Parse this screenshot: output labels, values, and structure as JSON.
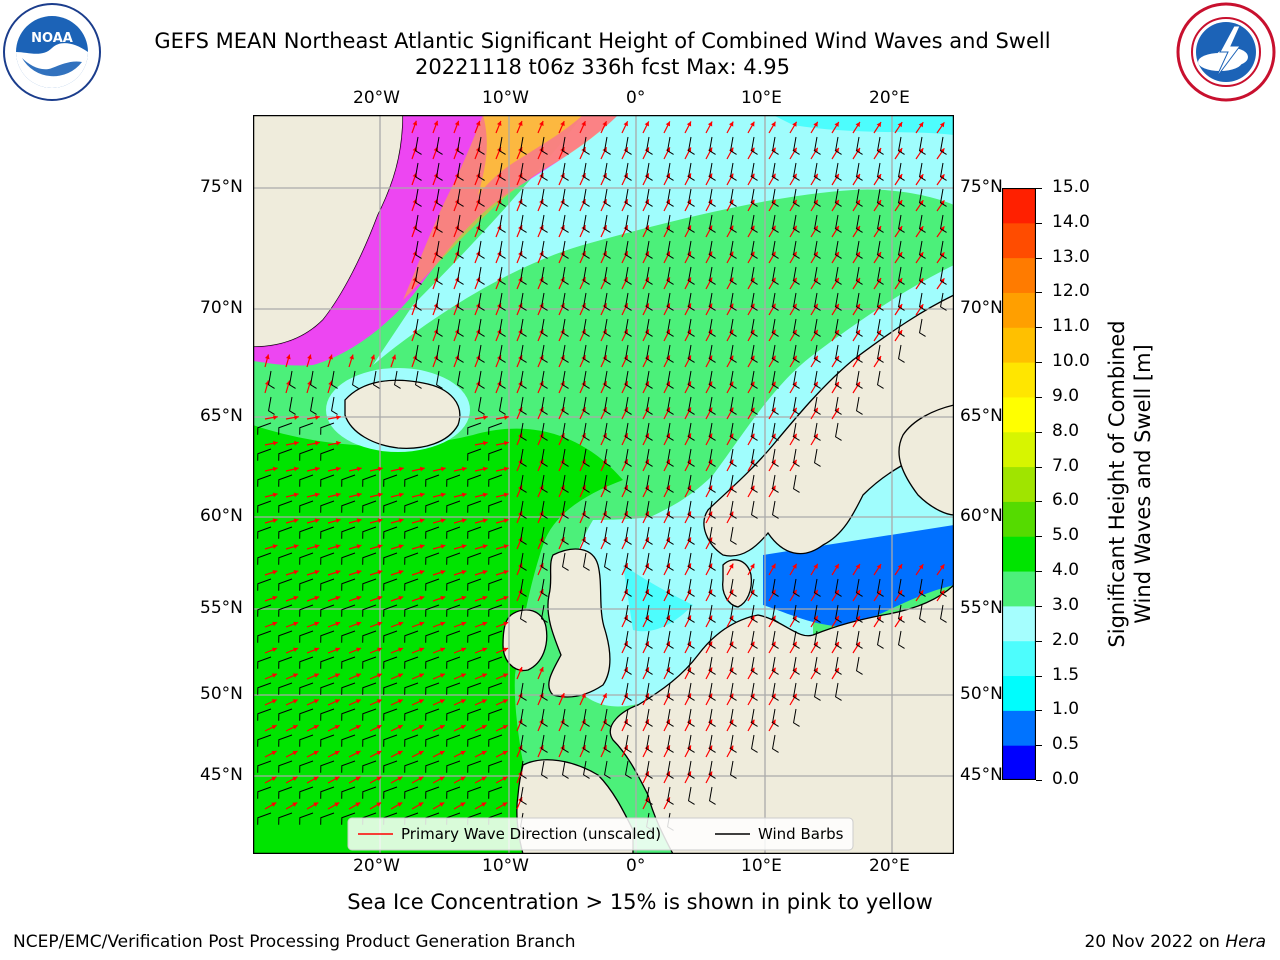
{
  "header": {
    "title_line1": "GEFS MEAN Northeast Atlantic Significant Height of Combined Wind Waves and Swell",
    "title_line2": "20221118 t06z 336h fcst   Max: 4.95",
    "left_logo_text": "NOAA",
    "left_logo_ring": "NATIONAL OCEANIC AND ATMOSPHERIC ADMINISTRATION · U.S. DEPARTMENT OF COMMERCE",
    "right_logo_ring": "NATIONAL WEATHER SERVICE"
  },
  "map": {
    "lon_ticks": [
      "20°W",
      "10°W",
      "0°",
      "10°E",
      "20°E"
    ],
    "lat_ticks": [
      "75°N",
      "70°N",
      "65°N",
      "60°N",
      "55°N",
      "50°N",
      "45°N"
    ],
    "legend": {
      "wave_label": "Primary Wave Direction (unscaled)",
      "barb_label": "Wind Barbs"
    },
    "colors": {
      "land": "#efecdc",
      "ocean_green": "#00e400",
      "ocean_light_green": "#4cf07a",
      "ocean_cyan": "#a0fdfd",
      "ocean_aqua": "#4dfdfd",
      "ocean_blue": "#0070ff",
      "ice": "#ff33ff",
      "arrow": "#ff0000"
    }
  },
  "colorbar": {
    "title_line1": "Significant Height of Combined",
    "title_line2": "Wind Waves and Swell [m]",
    "ticks": [
      "15.0",
      "14.0",
      "13.0",
      "12.0",
      "11.0",
      "10.0",
      "9.0",
      "8.0",
      "7.0",
      "6.0",
      "5.0",
      "4.0",
      "3.0",
      "2.0",
      "1.5",
      "1.0",
      "0.5",
      "0.0"
    ],
    "colors": [
      "#0000ff",
      "#0073ff",
      "#00fdfd",
      "#4dfdfd",
      "#a5fefe",
      "#4cf07a",
      "#00e400",
      "#55db00",
      "#a0e400",
      "#d7f500",
      "#ffff00",
      "#ffe600",
      "#ffc000",
      "#ff9f00",
      "#ff7b00",
      "#ff4c00",
      "#ff2000"
    ]
  },
  "caption": "Sea Ice Concentration > 15% is shown in pink to yellow",
  "footer": {
    "left": "NCEP/EMC/Verification Post Processing Product Generation Branch",
    "right_prefix": "20 Nov 2022 on ",
    "right_host": "Hera"
  }
}
